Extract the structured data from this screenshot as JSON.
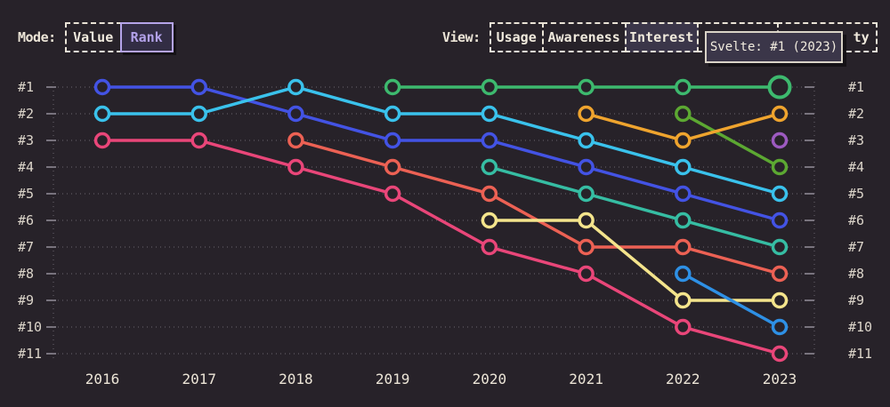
{
  "toolbar": {
    "mode": {
      "label": "Mode:",
      "options": [
        {
          "label": "Value",
          "selected": false
        },
        {
          "label": "Rank",
          "selected": true
        }
      ]
    },
    "view": {
      "label": "View:",
      "options": [
        {
          "label": "Usage",
          "selected": false
        },
        {
          "label": "Awareness",
          "selected": false
        },
        {
          "label": "Interest",
          "selected": true
        },
        {
          "label": "",
          "selected": false
        },
        {
          "label": "ty",
          "selected": false
        }
      ]
    }
  },
  "theme": {
    "background": "#272229",
    "text_cream": "#ece5d7",
    "selected_mode_accent": "#b2a1e9",
    "selected_view_bg": "#3b3649",
    "grid": "#6b6570"
  },
  "chart_data": {
    "type": "line",
    "subtype": "bump-rank-chart",
    "tooltip": "Svelte: #1 (2023)",
    "x_labels": [
      "2016",
      "2017",
      "2018",
      "2019",
      "2020",
      "2021",
      "2022",
      "2023"
    ],
    "rank_labels": [
      "#1",
      "#2",
      "#3",
      "#4",
      "#5",
      "#6",
      "#7",
      "#8",
      "#9",
      "#10",
      "#11"
    ],
    "ylim": [
      1,
      11
    ],
    "grid": "dotted",
    "point_fill": "#272229",
    "series": [
      {
        "name": "pink",
        "color": "#e94679",
        "ranks": [
          3,
          3,
          4,
          5,
          7,
          8,
          10,
          11
        ]
      },
      {
        "name": "indigo-blue",
        "color": "#4353e4",
        "ranks": [
          1,
          1,
          2,
          3,
          3,
          4,
          5,
          6
        ]
      },
      {
        "name": "cyan",
        "color": "#3ac2ec",
        "ranks": [
          2,
          2,
          1,
          2,
          2,
          3,
          4,
          5
        ]
      },
      {
        "name": "salmon",
        "color": "#ec6154",
        "ranks": [
          null,
          null,
          3,
          4,
          5,
          7,
          7,
          8
        ]
      },
      {
        "name": "teal",
        "color": "#36bda3",
        "ranks": [
          null,
          null,
          null,
          null,
          4,
          5,
          6,
          7
        ]
      },
      {
        "name": "yellow",
        "color": "#f4e48c",
        "ranks": [
          null,
          null,
          null,
          null,
          6,
          6,
          9,
          9
        ]
      },
      {
        "name": "olive-green",
        "color": "#5ca832",
        "ranks": [
          null,
          null,
          null,
          null,
          null,
          null,
          2,
          4
        ]
      },
      {
        "name": "orange",
        "color": "#efa42e",
        "ranks": [
          null,
          null,
          null,
          null,
          null,
          2,
          3,
          2
        ]
      },
      {
        "name": "sky-blue",
        "color": "#2e90e5",
        "ranks": [
          null,
          null,
          null,
          null,
          null,
          null,
          8,
          10
        ]
      },
      {
        "name": "purple",
        "color": "#9d5ac0",
        "ranks": [
          null,
          null,
          null,
          null,
          null,
          null,
          null,
          3
        ]
      },
      {
        "name": "svelte-green",
        "color": "#3db96e",
        "ranks": [
          null,
          null,
          null,
          1,
          1,
          1,
          1,
          1
        ],
        "highlight_last": true
      }
    ]
  }
}
